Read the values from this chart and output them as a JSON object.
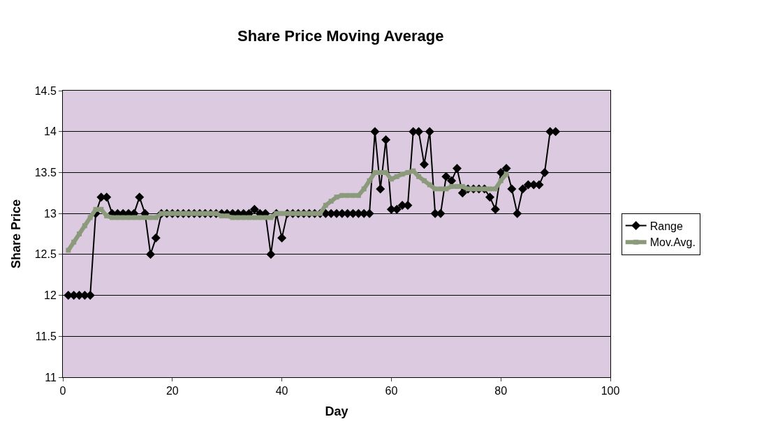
{
  "chart_data": {
    "type": "line",
    "title": "Share Price Moving Average",
    "xlabel": "Day",
    "ylabel": "Share Price",
    "xlim": [
      0,
      100
    ],
    "xticks": [
      0,
      20,
      40,
      60,
      80,
      100
    ],
    "ylim": [
      11,
      14.5
    ],
    "yticks": [
      11,
      11.5,
      12,
      12.5,
      13,
      13.5,
      14,
      14.5
    ],
    "grid": "y",
    "legend": "right",
    "series": [
      {
        "name": "Range",
        "color": "#000000",
        "marker": "diamond",
        "x": [
          1,
          2,
          3,
          4,
          5,
          6,
          7,
          8,
          9,
          10,
          11,
          12,
          13,
          14,
          15,
          16,
          17,
          18,
          19,
          20,
          21,
          22,
          23,
          24,
          25,
          26,
          27,
          28,
          29,
          30,
          31,
          32,
          33,
          34,
          35,
          36,
          37,
          38,
          39,
          40,
          41,
          42,
          43,
          44,
          45,
          46,
          47,
          48,
          49,
          50,
          51,
          52,
          53,
          54,
          55,
          56,
          57,
          58,
          59,
          60,
          61,
          62,
          63,
          64,
          65,
          66,
          67,
          68,
          69,
          70,
          71,
          72,
          73,
          74,
          75,
          76,
          77,
          78,
          79,
          80,
          81,
          82,
          83,
          84,
          85,
          86,
          87,
          88,
          89,
          90
        ],
        "values": [
          12,
          12,
          12,
          12,
          12,
          13,
          13.2,
          13.2,
          13,
          13,
          13,
          13,
          13,
          13.2,
          13,
          12.5,
          12.7,
          13,
          13,
          13,
          13,
          13,
          13,
          13,
          13,
          13,
          13,
          13,
          13,
          13,
          13,
          13,
          13,
          13,
          13.05,
          13,
          13,
          12.5,
          13,
          12.7,
          13,
          13,
          13,
          13,
          13,
          13,
          13,
          13,
          13,
          13,
          13,
          13,
          13,
          13,
          13,
          13,
          14,
          13.3,
          13.9,
          13.05,
          13.05,
          13.1,
          13.1,
          14,
          14,
          13.6,
          14,
          13,
          13,
          13.45,
          13.4,
          13.55,
          13.25,
          13.3,
          13.3,
          13.3,
          13.3,
          13.2,
          13.05,
          13.5,
          13.55,
          13.3,
          13,
          13.3,
          13.35,
          13.35,
          13.35,
          13.5,
          14,
          14
        ]
      },
      {
        "name": "Mov.Avg.",
        "color": "#8c9a7c",
        "marker": "square",
        "x": [
          1,
          2,
          3,
          4,
          5,
          6,
          7,
          8,
          9,
          10,
          11,
          12,
          13,
          14,
          15,
          16,
          17,
          18,
          19,
          20,
          21,
          22,
          23,
          24,
          25,
          26,
          27,
          28,
          29,
          30,
          31,
          32,
          33,
          34,
          35,
          36,
          37,
          38,
          39,
          40,
          41,
          42,
          43,
          44,
          45,
          46,
          47,
          48,
          49,
          50,
          51,
          52,
          53,
          54,
          55,
          56,
          57,
          58,
          59,
          60,
          61,
          62,
          63,
          64,
          65,
          66,
          67,
          68,
          69,
          70,
          71,
          72,
          73,
          74,
          75,
          76,
          77,
          78,
          79,
          80,
          81
        ],
        "values": [
          12.55,
          12.65,
          12.75,
          12.85,
          12.95,
          13.05,
          13.05,
          12.97,
          12.95,
          12.95,
          12.95,
          12.95,
          12.95,
          12.95,
          12.95,
          12.95,
          12.95,
          13,
          13,
          13,
          13,
          13,
          13,
          13,
          13,
          13,
          13,
          13,
          12.97,
          12.97,
          12.95,
          12.95,
          12.95,
          12.95,
          12.95,
          12.95,
          12.95,
          12.95,
          13,
          13,
          13,
          13,
          13,
          13,
          13,
          13,
          13,
          13.1,
          13.15,
          13.2,
          13.22,
          13.22,
          13.22,
          13.22,
          13.3,
          13.4,
          13.5,
          13.5,
          13.5,
          13.42,
          13.45,
          13.48,
          13.5,
          13.52,
          13.45,
          13.4,
          13.35,
          13.3,
          13.3,
          13.3,
          13.33,
          13.33,
          13.33,
          13.3,
          13.3,
          13.3,
          13.3,
          13.3,
          13.3,
          13.4,
          13.48
        ]
      }
    ]
  }
}
